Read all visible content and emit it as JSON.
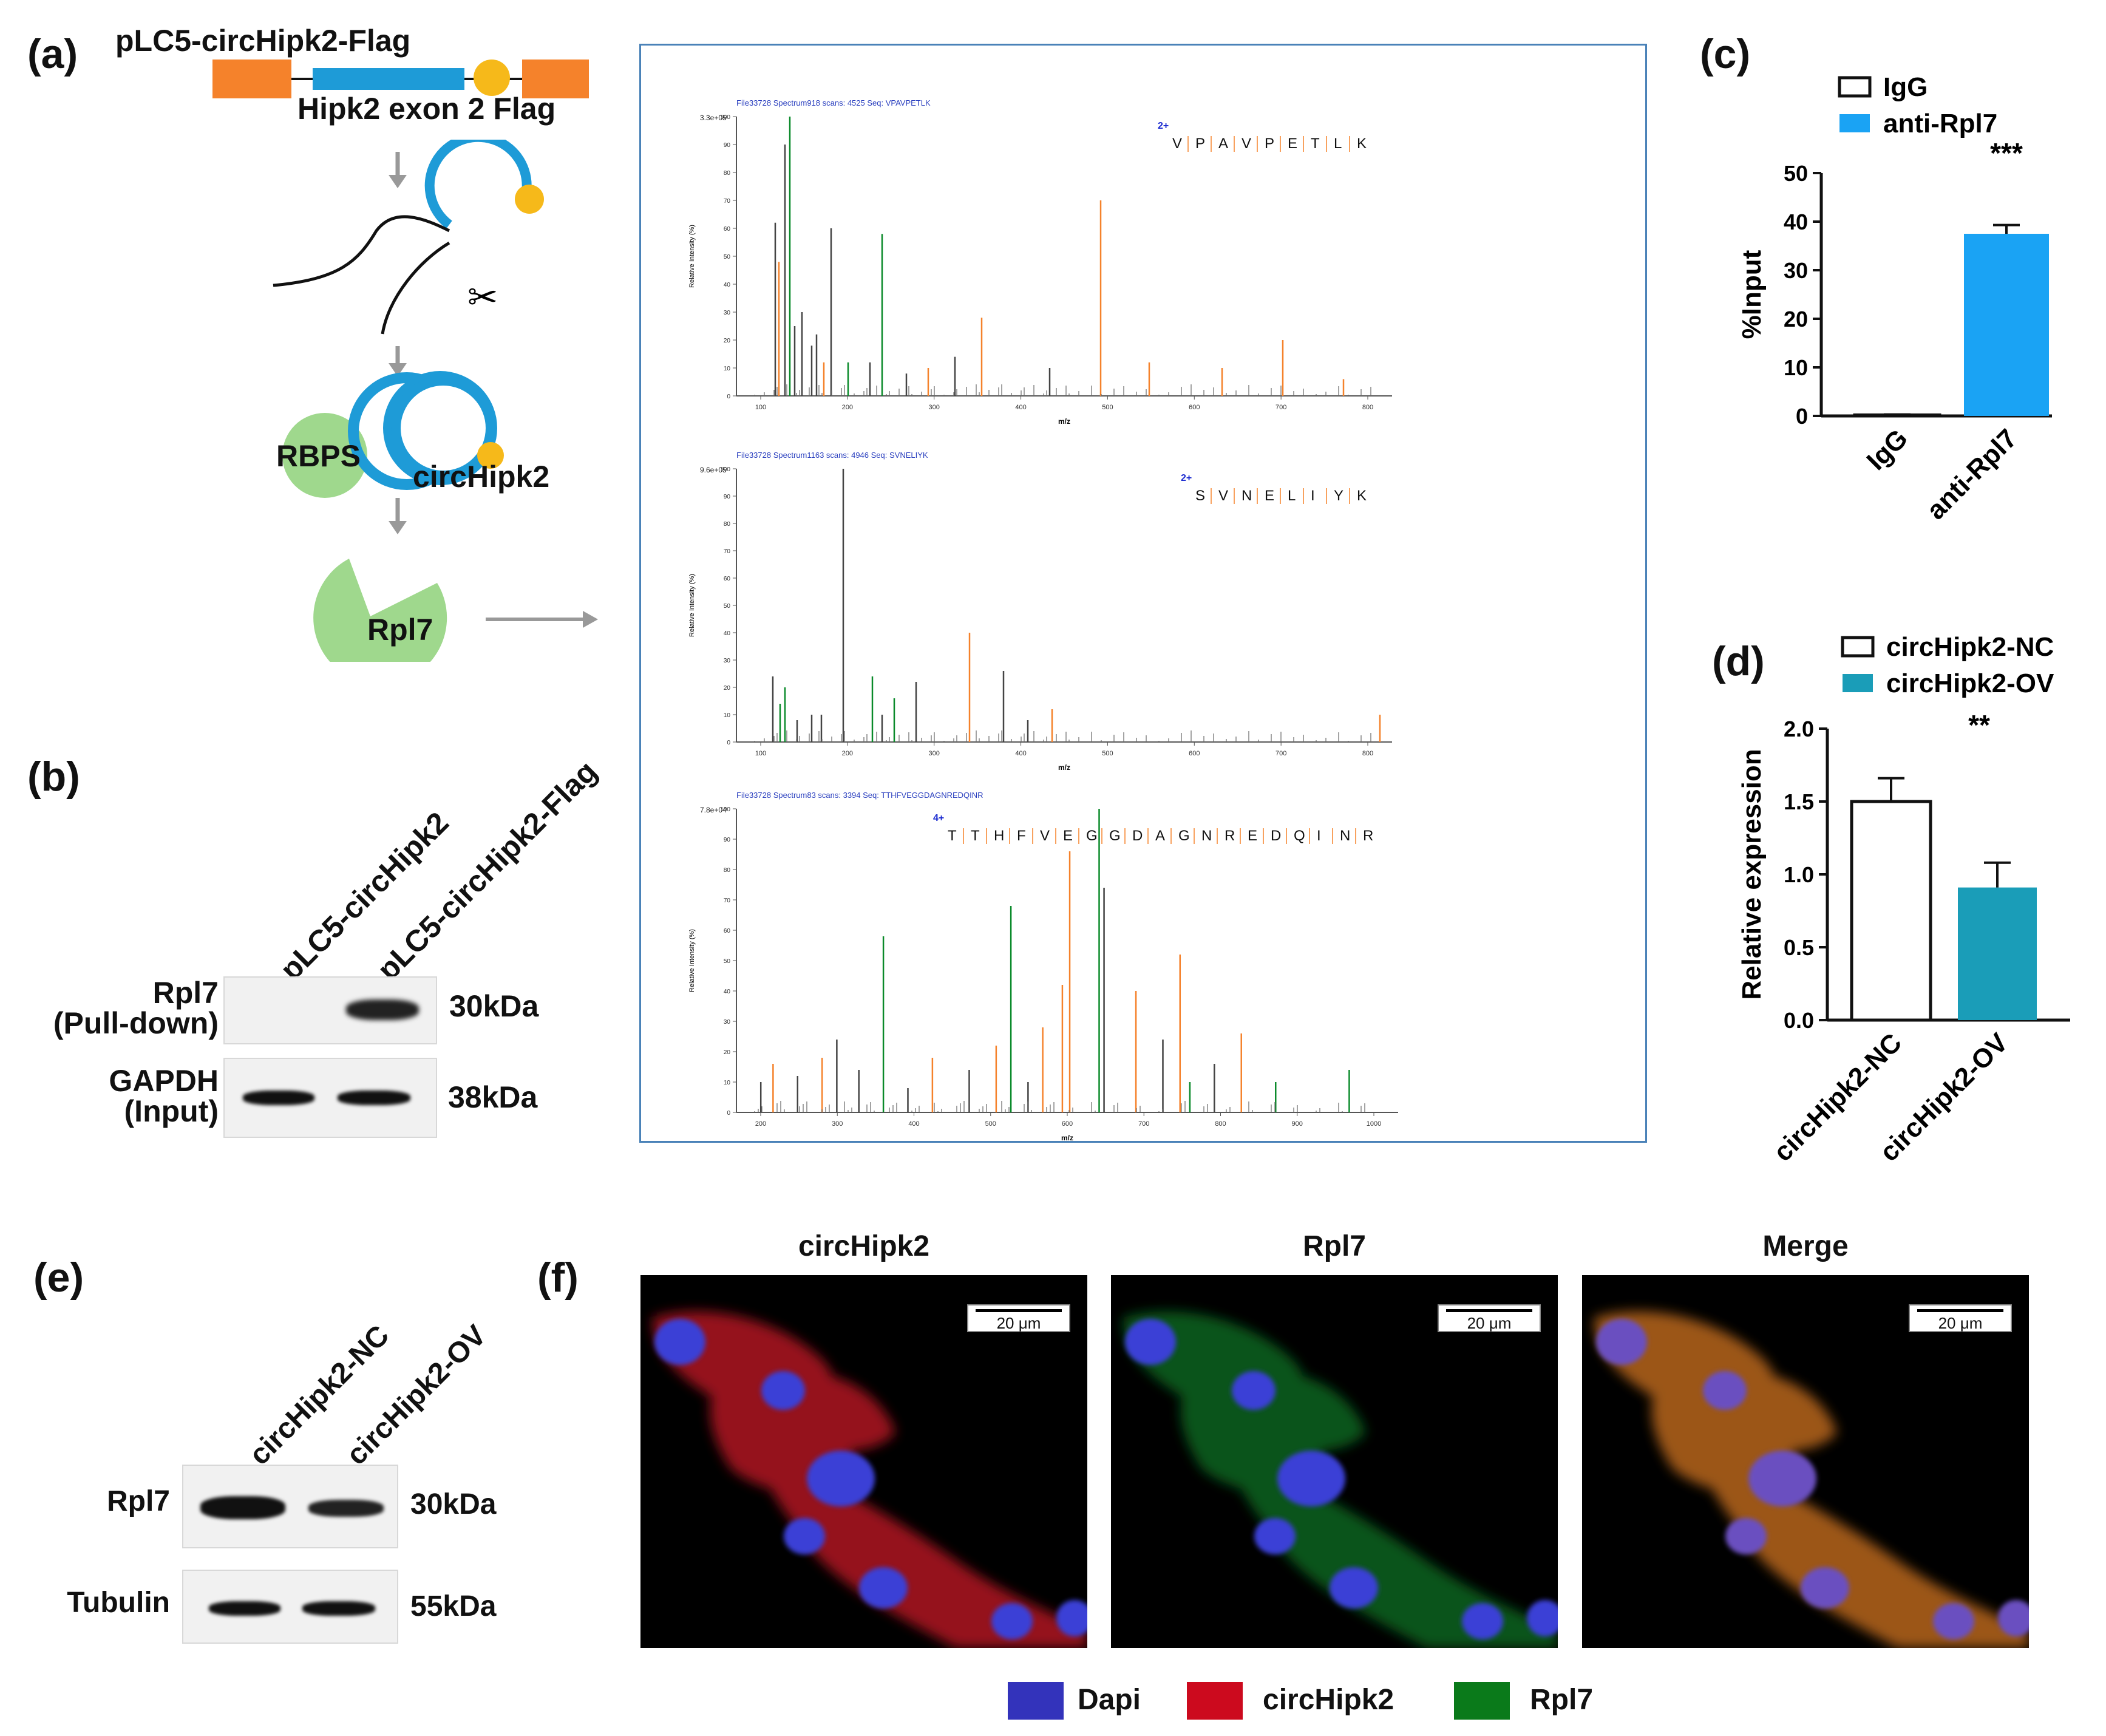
{
  "panel_labels": {
    "a": "(a)",
    "b": "(b)",
    "c": "(c)",
    "d": "(d)",
    "e": "(e)",
    "f": "(f)"
  },
  "panel_a": {
    "construct_title": "pLC5-circHipk2-Flag",
    "construct_caption": "Hipk2 exon 2 Flag",
    "protein_label": "RBPS",
    "circ_label": "circHipk2",
    "rpl7_label": "Rpl7",
    "colors": {
      "orange": "#f5822b",
      "blue": "#1e9bd7",
      "yellow": "#f6b91a",
      "green": "#9fd88d"
    }
  },
  "panel_b": {
    "lane1": "pLC5-circHipk2",
    "lane2": "pLC5-circHipk2-Flag",
    "row1_label_1": "Rpl7",
    "row1_label_2": "(Pull-down)",
    "row1_size": "30kDa",
    "row2_label_1": "GAPDH",
    "row2_label_2": "(Input)",
    "row2_size": "38kDa"
  },
  "spectra": [
    {
      "header": "File33728 Spectrum918 scans: 4525 Seq: VPAVPETLK",
      "ymax_label": "3.3e+05",
      "charge": "2+",
      "sequence": [
        "V",
        "P",
        "A",
        "V",
        "P",
        "E",
        "T",
        "L",
        "K"
      ],
      "xlabel": "m/z",
      "ylabel": "Relative Intensity (%)",
      "xticks": [
        "100",
        "200",
        "300",
        "400",
        "500",
        "600",
        "700",
        "800"
      ],
      "yticks": [
        "0",
        "10",
        "20",
        "30",
        "40",
        "50",
        "60",
        "70",
        "80",
        "90",
        "100"
      ]
    },
    {
      "header": "File33728 Spectrum1163 scans: 4946 Seq: SVNELIYK",
      "ymax_label": "9.6e+05",
      "charge": "2+",
      "sequence": [
        "S",
        "V",
        "N",
        "E",
        "L",
        "I",
        "Y",
        "K"
      ],
      "xlabel": "m/z",
      "ylabel": "Relative Intensity (%)",
      "xticks": [
        "100",
        "200",
        "300",
        "400",
        "500",
        "600",
        "700",
        "800"
      ],
      "yticks": [
        "0",
        "10",
        "20",
        "30",
        "40",
        "50",
        "60",
        "70",
        "80",
        "90",
        "100"
      ]
    },
    {
      "header": "File33728 Spectrum83 scans: 3394 Seq: TTHFVEGGDAGNREDQINR",
      "ymax_label": "7.8e+04",
      "charge": "4+",
      "sequence": [
        "T",
        "T",
        "H",
        "F",
        "V",
        "E",
        "G",
        "G",
        "D",
        "A",
        "G",
        "N",
        "R",
        "E",
        "D",
        "Q",
        "I",
        "N",
        "R"
      ],
      "xlabel": "m/z",
      "ylabel": "Relative Intensity (%)",
      "xticks": [
        "200",
        "300",
        "400",
        "500",
        "600",
        "700",
        "800",
        "900",
        "1000"
      ],
      "yticks": [
        "0",
        "10",
        "20",
        "30",
        "40",
        "50",
        "60",
        "70",
        "80",
        "90",
        "100"
      ]
    }
  ],
  "panel_c": {
    "ylabel": "%Input",
    "legend_1": "IgG",
    "legend_2": "anti-Rpl7",
    "significance": "***",
    "cat_1": "IgG",
    "cat_2": "anti-Rpl7",
    "yticks": [
      "0",
      "10",
      "20",
      "30",
      "40",
      "50"
    ],
    "bar_color": "#1aa3f4"
  },
  "panel_d": {
    "ylabel": "Relative expression",
    "legend_1": "circHipk2-NC",
    "legend_2": "circHipk2-OV",
    "significance": "**",
    "cat_1": "circHipk2-NC",
    "cat_2": "circHipk2-OV",
    "yticks": [
      "0.0",
      "0.5",
      "1.0",
      "1.5",
      "2.0"
    ],
    "bar_color": "#1a9db8"
  },
  "chart_data": [
    {
      "type": "bar",
      "categories": [
        "IgG",
        "anti-Rpl7"
      ],
      "values": [
        0.2,
        37.5
      ],
      "errors": [
        0.1,
        1.8
      ],
      "ylabel": "%Input",
      "ylim": [
        0,
        50
      ],
      "legend": [
        "IgG",
        "anti-Rpl7"
      ],
      "annotations": [
        "***"
      ]
    },
    {
      "type": "bar",
      "categories": [
        "circHipk2-NC",
        "circHipk2-OV"
      ],
      "values": [
        1.5,
        0.91
      ],
      "errors": [
        0.16,
        0.17
      ],
      "ylabel": "Relative expression",
      "ylim": [
        0,
        2.0
      ],
      "legend": [
        "circHipk2-NC",
        "circHipk2-OV"
      ],
      "annotations": [
        "**"
      ]
    }
  ],
  "panel_e": {
    "lane1": "circHipk2-NC",
    "lane2": "circHipk2-OV",
    "row1_label": "Rpl7",
    "row1_size": "30kDa",
    "row2_label": "Tubulin",
    "row2_size": "55kDa"
  },
  "panel_f": {
    "titles": [
      "circHipk2",
      "Rpl7",
      "Merge"
    ],
    "scale_text": "20 μm",
    "legend": [
      {
        "label": "Dapi",
        "color": "#3333bb"
      },
      {
        "label": "circHipk2",
        "color": "#cc0a1e"
      },
      {
        "label": "Rpl7",
        "color": "#0a7a1a"
      }
    ]
  }
}
